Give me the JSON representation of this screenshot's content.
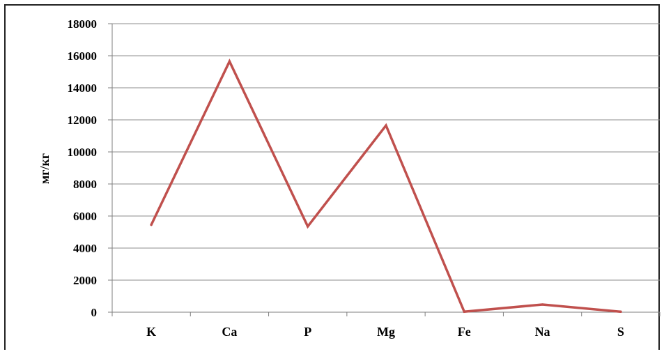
{
  "chart_data": {
    "type": "line",
    "categories": [
      "K",
      "Ca",
      "P",
      "Mg",
      "Fe",
      "Na",
      "S"
    ],
    "series": [
      {
        "values": [
          5450,
          15650,
          5350,
          11650,
          30,
          480,
          30
        ],
        "color": "#c0504d"
      }
    ],
    "ylabel": "мг/кг",
    "ylim": [
      0,
      18000
    ],
    "yticks": [
      0,
      2000,
      4000,
      6000,
      8000,
      10000,
      12000,
      14000,
      16000,
      18000
    ],
    "ytick_labels": [
      "0",
      "2000",
      "4000",
      "6000",
      "8000",
      "10000",
      "12000",
      "14000",
      "16000",
      "18000"
    ],
    "grid": true,
    "legend": "none"
  }
}
